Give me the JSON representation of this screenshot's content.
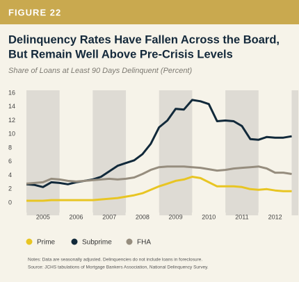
{
  "header": "FIGURE 22",
  "chart_data": {
    "type": "line",
    "title": [
      "Delinquency Rates Have Fallen Across the Board,",
      "But Remain Well Above Pre-Crisis Levels"
    ],
    "subtitle": "Share of Loans at Least 90 Days Delinquent (Percent)",
    "x": [
      2005,
      2005.25,
      2005.5,
      2005.75,
      2006,
      2006.25,
      2006.5,
      2006.75,
      2007,
      2007.25,
      2007.5,
      2007.75,
      2008,
      2008.25,
      2008.5,
      2008.75,
      2009,
      2009.25,
      2009.5,
      2009.75,
      2010,
      2010.25,
      2010.5,
      2010.75,
      2011,
      2011.25,
      2011.5,
      2011.75,
      2012,
      2012.25,
      2012.5,
      2012.75,
      2013
    ],
    "series": [
      {
        "name": "Prime",
        "color": "#e8c523",
        "values": [
          0.3,
          0.3,
          0.3,
          0.4,
          0.4,
          0.4,
          0.4,
          0.4,
          0.4,
          0.5,
          0.6,
          0.7,
          0.9,
          1.1,
          1.4,
          1.9,
          2.4,
          2.8,
          3.2,
          3.4,
          3.8,
          3.6,
          3.0,
          2.4,
          2.4,
          2.4,
          2.3,
          2.0,
          1.9,
          2.0,
          1.8,
          1.7,
          1.7
        ]
      },
      {
        "name": "Subprime",
        "color": "#11293a",
        "values": [
          2.7,
          2.6,
          2.3,
          3.0,
          2.9,
          2.7,
          3.0,
          3.2,
          3.4,
          3.8,
          4.6,
          5.4,
          5.8,
          6.2,
          7.1,
          8.6,
          11.0,
          12.0,
          13.7,
          13.6,
          15.0,
          14.8,
          14.4,
          11.9,
          12.0,
          11.9,
          11.2,
          9.3,
          9.2,
          9.6,
          9.5,
          9.5,
          9.7
        ]
      },
      {
        "name": "FHA",
        "color": "#968d7e",
        "values": [
          2.8,
          2.9,
          3.0,
          3.5,
          3.4,
          3.2,
          3.1,
          3.2,
          3.3,
          3.4,
          3.5,
          3.4,
          3.5,
          3.7,
          4.2,
          4.8,
          5.2,
          5.3,
          5.3,
          5.3,
          5.2,
          5.1,
          4.9,
          4.7,
          4.8,
          5.0,
          5.1,
          5.2,
          5.3,
          5.0,
          4.4,
          4.4,
          4.2
        ]
      }
    ],
    "xlim": [
      2005,
      2013.2
    ],
    "xticks": [
      2005,
      2006,
      2007,
      2008,
      2009,
      2010,
      2011,
      2012
    ],
    "ylim": [
      0,
      16
    ],
    "yticks": [
      0,
      2,
      4,
      6,
      8,
      10,
      12,
      14,
      16
    ],
    "notes": [
      "Notes: Data are seasonally adjusted. Delinquencies do not include loans in foreclosure.",
      "Source: JCHS tabulations of Mortgage Bankers Association, National Delinquency Survey."
    ]
  }
}
